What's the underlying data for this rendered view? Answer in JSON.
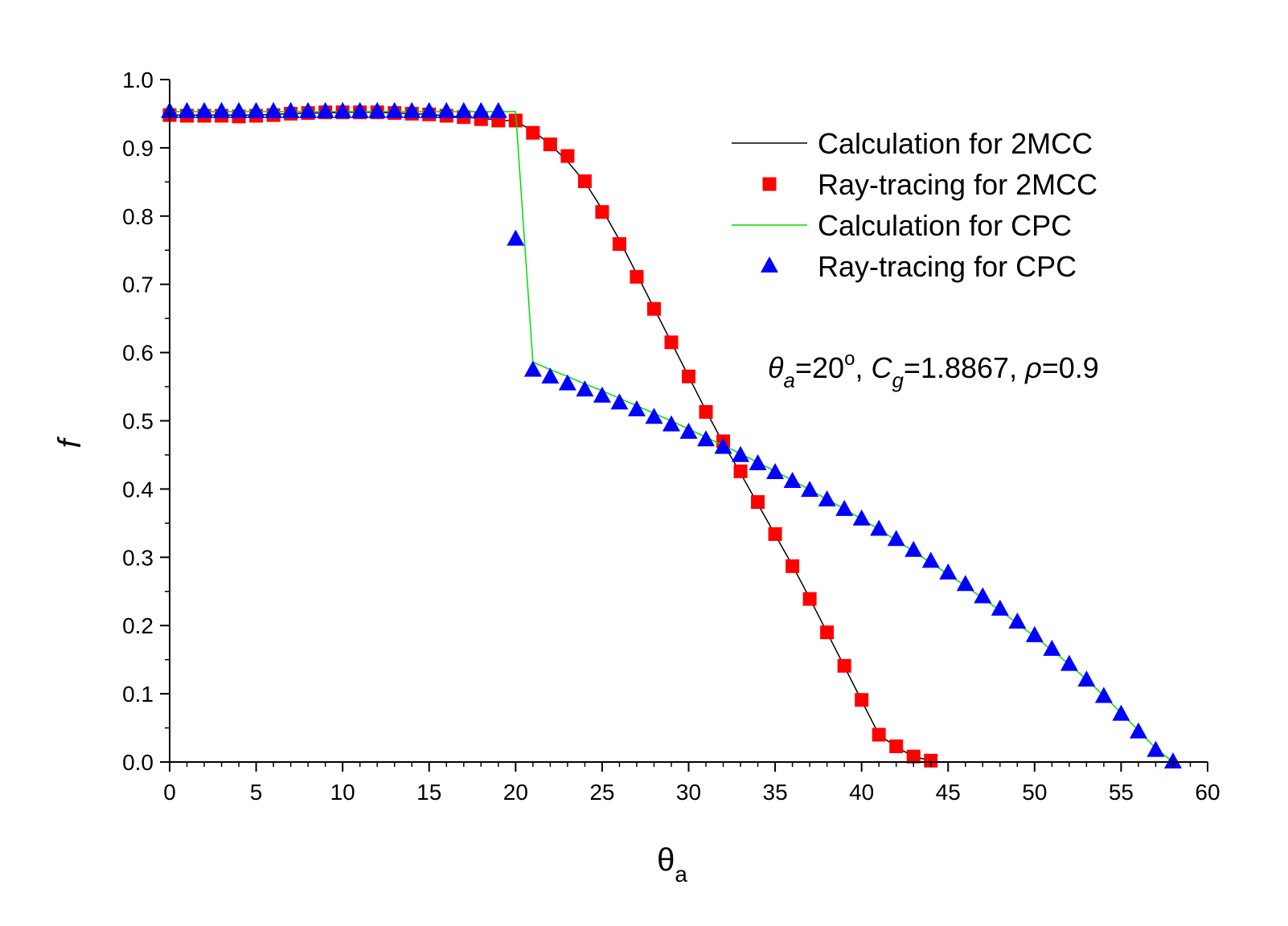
{
  "chart_data": {
    "type": "line",
    "title": "",
    "xlabel": {
      "main": "θ",
      "sub": "a"
    },
    "ylabel": "f",
    "xlim": [
      0,
      60
    ],
    "ylim": [
      0,
      1.0
    ],
    "x_ticks": [
      "0",
      "5",
      "10",
      "15",
      "20",
      "25",
      "30",
      "35",
      "40",
      "45",
      "50",
      "55",
      "60"
    ],
    "y_ticks": [
      "0.0",
      "0.1",
      "0.2",
      "0.3",
      "0.4",
      "0.5",
      "0.6",
      "0.7",
      "0.8",
      "0.9",
      "1.0"
    ],
    "grid": false,
    "legend_position": "top-right",
    "annotation": {
      "theta": "θ",
      "theta_sub": "a",
      "eq1": "=20",
      "deg": "o",
      "sep1": ", ",
      "c": "C",
      "c_sub": "g",
      "eq2": "=1.8867",
      "sep2": ", ",
      "rho": "ρ",
      "eq3": "=0.9"
    },
    "series": [
      {
        "name": "Calculation for 2MCC",
        "style": "line",
        "color": "#000000",
        "x": [
          0,
          1,
          2,
          3,
          4,
          5,
          6,
          7,
          8,
          9,
          10,
          11,
          12,
          13,
          14,
          15,
          16,
          17,
          18,
          19,
          20,
          21,
          22,
          23,
          24,
          25,
          26,
          27,
          28,
          29,
          30,
          31,
          32,
          33,
          34,
          35,
          36,
          37,
          38,
          39,
          40,
          41,
          42,
          43,
          44
        ],
        "y": [
          0.948,
          0.948,
          0.948,
          0.948,
          0.948,
          0.948,
          0.949,
          0.95,
          0.951,
          0.951,
          0.952,
          0.952,
          0.952,
          0.951,
          0.95,
          0.949,
          0.947,
          0.945,
          0.943,
          0.941,
          0.939,
          0.925,
          0.905,
          0.88,
          0.85,
          0.81,
          0.765,
          0.715,
          0.665,
          0.615,
          0.565,
          0.515,
          0.467,
          0.423,
          0.378,
          0.333,
          0.288,
          0.24,
          0.19,
          0.14,
          0.09,
          0.04,
          0.022,
          0.008,
          0.002
        ]
      },
      {
        "name": "Ray-tracing for 2MCC",
        "style": "square",
        "color": "#ff0000",
        "x": [
          0,
          1,
          2,
          3,
          4,
          5,
          6,
          7,
          8,
          9,
          10,
          11,
          12,
          13,
          14,
          15,
          16,
          17,
          18,
          19,
          20,
          21,
          22,
          23,
          24,
          25,
          26,
          27,
          28,
          29,
          30,
          31,
          32,
          33,
          34,
          35,
          36,
          37,
          38,
          39,
          40,
          41,
          42,
          43,
          44
        ],
        "y": [
          0.948,
          0.947,
          0.947,
          0.947,
          0.946,
          0.947,
          0.948,
          0.95,
          0.951,
          0.952,
          0.952,
          0.952,
          0.952,
          0.951,
          0.95,
          0.949,
          0.947,
          0.945,
          0.942,
          0.94,
          0.94,
          0.922,
          0.905,
          0.888,
          0.851,
          0.806,
          0.759,
          0.711,
          0.664,
          0.615,
          0.565,
          0.513,
          0.47,
          0.426,
          0.381,
          0.334,
          0.287,
          0.239,
          0.19,
          0.141,
          0.091,
          0.04,
          0.023,
          0.008,
          0.002
        ]
      },
      {
        "name": "Calculation for CPC",
        "style": "line",
        "color": "#00dd00",
        "x": [
          0,
          1,
          2,
          3,
          4,
          5,
          6,
          7,
          8,
          9,
          10,
          11,
          12,
          13,
          14,
          15,
          16,
          17,
          18,
          19,
          20,
          21,
          22,
          23,
          24,
          25,
          26,
          27,
          28,
          29,
          30,
          31,
          32,
          33,
          34,
          35,
          36,
          37,
          38,
          39,
          40,
          41,
          42,
          43,
          44,
          45,
          46,
          47,
          48,
          49,
          50,
          51,
          52,
          53,
          54,
          55,
          56,
          57,
          58
        ],
        "y": [
          0.953,
          0.953,
          0.953,
          0.953,
          0.953,
          0.953,
          0.953,
          0.953,
          0.953,
          0.953,
          0.953,
          0.953,
          0.953,
          0.953,
          0.953,
          0.953,
          0.953,
          0.953,
          0.953,
          0.953,
          0.953,
          0.586,
          0.575,
          0.565,
          0.554,
          0.544,
          0.533,
          0.522,
          0.511,
          0.5,
          0.488,
          0.476,
          0.464,
          0.452,
          0.439,
          0.426,
          0.413,
          0.399,
          0.385,
          0.371,
          0.356,
          0.341,
          0.325,
          0.309,
          0.292,
          0.275,
          0.258,
          0.24,
          0.222,
          0.203,
          0.184,
          0.164,
          0.143,
          0.121,
          0.097,
          0.072,
          0.046,
          0.02,
          0.0
        ]
      },
      {
        "name": "Ray-tracing for CPC",
        "style": "triangle",
        "color": "#0000ff",
        "x": [
          0,
          1,
          2,
          3,
          4,
          5,
          6,
          7,
          8,
          9,
          10,
          11,
          12,
          13,
          14,
          15,
          16,
          17,
          18,
          19,
          20,
          21,
          22,
          23,
          24,
          25,
          26,
          27,
          28,
          29,
          30,
          31,
          32,
          33,
          34,
          35,
          36,
          37,
          38,
          39,
          40,
          41,
          42,
          43,
          44,
          45,
          46,
          47,
          48,
          49,
          50,
          51,
          52,
          53,
          54,
          55,
          56,
          57,
          58
        ],
        "y": [
          0.953,
          0.953,
          0.953,
          0.953,
          0.953,
          0.953,
          0.953,
          0.953,
          0.953,
          0.953,
          0.953,
          0.953,
          0.953,
          0.953,
          0.953,
          0.953,
          0.953,
          0.953,
          0.953,
          0.953,
          0.766,
          0.574,
          0.564,
          0.554,
          0.545,
          0.536,
          0.526,
          0.516,
          0.505,
          0.494,
          0.483,
          0.472,
          0.461,
          0.449,
          0.437,
          0.424,
          0.411,
          0.398,
          0.384,
          0.37,
          0.356,
          0.341,
          0.326,
          0.31,
          0.294,
          0.277,
          0.26,
          0.242,
          0.224,
          0.205,
          0.185,
          0.165,
          0.143,
          0.12,
          0.096,
          0.07,
          0.044,
          0.017,
          0.0
        ]
      }
    ]
  }
}
